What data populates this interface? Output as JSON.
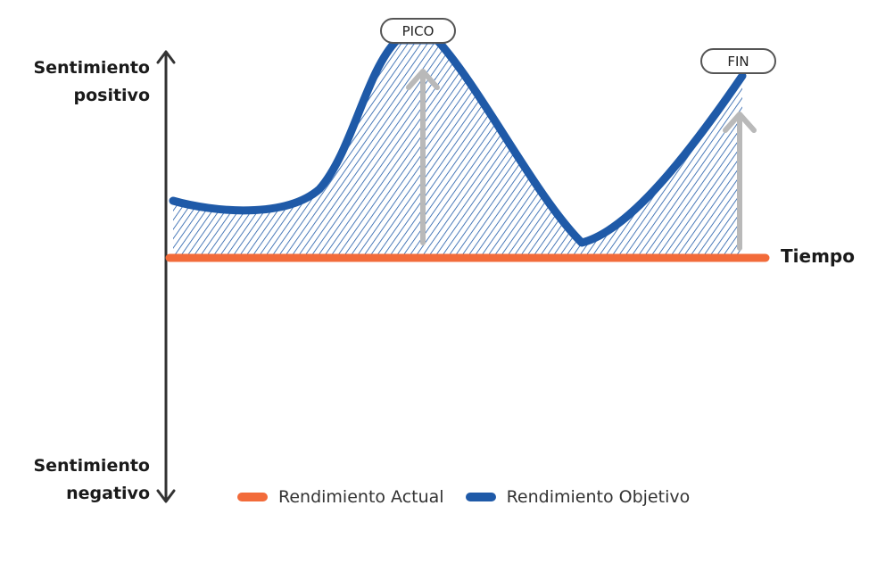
{
  "diagram": {
    "y_axis": {
      "top_label": "Sentimiento\npositivo",
      "bottom_label": "Sentimiento\nnegativo"
    },
    "x_axis": {
      "label": "Tiempo"
    },
    "markers": {
      "peak": "PICO",
      "end": "FIN"
    },
    "legend": [
      {
        "label": "Rendimiento Actual",
        "color": "#f26b3a"
      },
      {
        "label": "Rendimiento Objetivo",
        "color": "#1f5aa8"
      }
    ],
    "colors": {
      "axis": "#333333",
      "baseline": "#f26b3a",
      "curve": "#1f5aa8",
      "hatch": "#1f5aa8",
      "arrows": "#b9b9b9"
    }
  }
}
